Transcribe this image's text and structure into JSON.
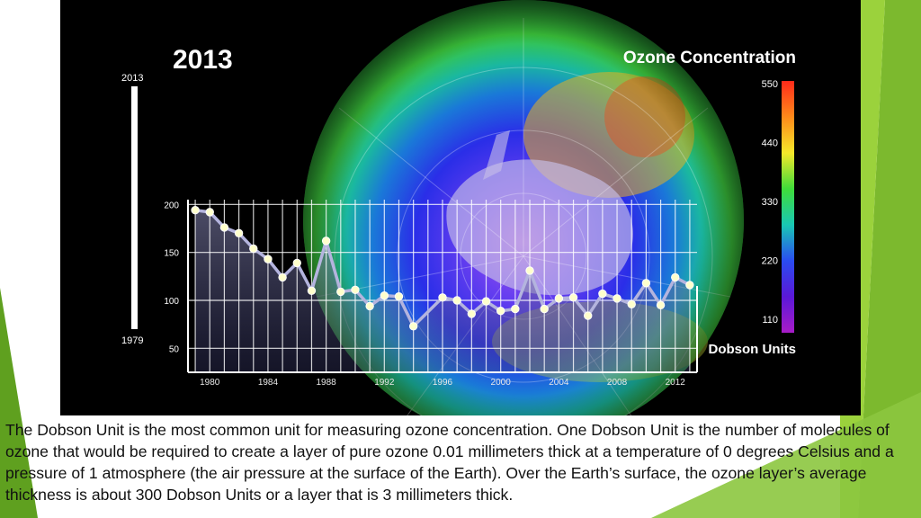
{
  "slide": {
    "accent_colors": {
      "dark_green": "#5fa01f",
      "light_green": "#9bd23c"
    },
    "caption": "The Dobson Unit is the most common unit for measuring ozone concentration. One Dobson Unit is the number of molecules of ozone that would be required to create a layer of pure ozone 0.01 millimeters thick at a temperature of 0 degrees Celsius and a pressure of 1 atmosphere (the air pressure at the surface of the Earth). Over the Earth’s surface, the ozone layer’s average thickness is about 300 Dobson Units or a layer that is 3 millimeters thick."
  },
  "figure": {
    "year": "2013",
    "timeline": {
      "top_label": "2013",
      "bottom_label": "1979"
    },
    "colorbar": {
      "title": "Ozone Concentration",
      "unit": "Dobson Units",
      "ticks": [
        "550",
        "440",
        "330",
        "220",
        "110"
      ],
      "colors": [
        "#ff2a1a",
        "#ff8a1a",
        "#f5e82a",
        "#3fdc3a",
        "#19c8b4",
        "#2a4cf0",
        "#5a18d8",
        "#a81cc8"
      ]
    }
  },
  "chart_data": {
    "type": "line",
    "title": "",
    "xlabel": "",
    "ylabel": "",
    "x_tick_labels": [
      "1980",
      "1984",
      "1988",
      "1992",
      "1996",
      "2000",
      "2004",
      "2008",
      "2012"
    ],
    "y_tick_labels": [
      "200",
      "150",
      "100",
      "50"
    ],
    "xlim": [
      1978.5,
      2013.5
    ],
    "ylim": [
      25,
      205
    ],
    "grid": true,
    "series": [
      {
        "x": [
          1979,
          1980,
          1981,
          1982,
          1983,
          1984,
          1985,
          1986,
          1987,
          1988,
          1989,
          1990,
          1991,
          1992,
          1993,
          1994,
          1996,
          1997,
          1998,
          1999,
          2000,
          2001,
          2002,
          2003,
          2004,
          2005,
          2006,
          2007,
          2008,
          2009,
          2010,
          2011,
          2012,
          2013
        ],
        "values": [
          194,
          192,
          176,
          170,
          154,
          143,
          124,
          139,
          110,
          162,
          109,
          111,
          94,
          105,
          104,
          73,
          103,
          100,
          86,
          99,
          89,
          91,
          131,
          91,
          102,
          103,
          84,
          107,
          102,
          96,
          118,
          95,
          124,
          116
        ]
      }
    ]
  }
}
